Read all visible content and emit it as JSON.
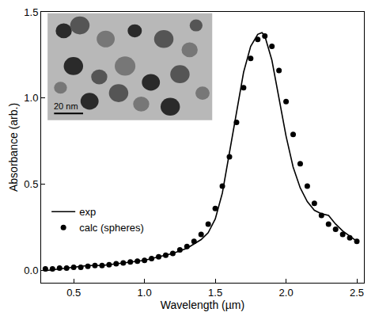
{
  "chart_data": {
    "type": "line",
    "x_label": "Wavelength (µm)",
    "y_label": "Absorbance (arb.)",
    "xlim": [
      0.27,
      2.55
    ],
    "ylim": [
      -0.07,
      1.5
    ],
    "xticks": [
      0.5,
      {
        "value": 1,
        "label": "1.0"
      },
      1.5,
      {
        "value": 2,
        "label": "2.0"
      },
      2.5
    ],
    "yticks": [
      {
        "value": 0,
        "label": "0.0"
      },
      0.5,
      {
        "value": 1,
        "label": "1.0"
      },
      1.5
    ],
    "grid": false,
    "legend": "lower left",
    "annotations": [
      "20 nm"
    ],
    "series": [
      {
        "name": "exp",
        "type": "line",
        "color": "#000000",
        "line_style": "solid",
        "x": [
          0.3,
          0.4,
          0.5,
          0.6,
          0.7,
          0.8,
          0.9,
          1.0,
          1.1,
          1.2,
          1.3,
          1.4,
          1.45,
          1.5,
          1.55,
          1.6,
          1.65,
          1.7,
          1.75,
          1.8,
          1.83,
          1.85,
          1.9,
          1.95,
          2.0,
          2.05,
          2.1,
          2.15,
          2.2,
          2.25,
          2.3,
          2.35,
          2.4,
          2.45,
          2.5
        ],
        "values": [
          0.0,
          0.01,
          0.02,
          0.03,
          0.03,
          0.04,
          0.05,
          0.06,
          0.08,
          0.1,
          0.13,
          0.18,
          0.22,
          0.3,
          0.45,
          0.68,
          0.92,
          1.15,
          1.3,
          1.37,
          1.38,
          1.36,
          1.22,
          1.0,
          0.78,
          0.6,
          0.48,
          0.4,
          0.35,
          0.33,
          0.32,
          0.27,
          0.23,
          0.2,
          0.17
        ]
      },
      {
        "name": "calc (spheres)",
        "type": "scatter",
        "color": "#000000",
        "marker": "circle",
        "x": [
          0.3,
          0.35,
          0.4,
          0.45,
          0.5,
          0.55,
          0.6,
          0.65,
          0.7,
          0.75,
          0.8,
          0.85,
          0.9,
          0.95,
          1.0,
          1.05,
          1.1,
          1.15,
          1.2,
          1.25,
          1.3,
          1.35,
          1.4,
          1.45,
          1.5,
          1.55,
          1.6,
          1.65,
          1.7,
          1.75,
          1.8,
          1.85,
          1.9,
          1.95,
          2.0,
          2.05,
          2.1,
          2.15,
          2.2,
          2.25,
          2.3,
          2.35,
          2.4,
          2.45,
          2.5
        ],
        "values": [
          0.01,
          0.01,
          0.015,
          0.015,
          0.02,
          0.02,
          0.025,
          0.03,
          0.03,
          0.035,
          0.04,
          0.045,
          0.05,
          0.055,
          0.06,
          0.07,
          0.08,
          0.09,
          0.1,
          0.12,
          0.14,
          0.17,
          0.21,
          0.27,
          0.36,
          0.49,
          0.66,
          0.86,
          1.06,
          1.23,
          1.34,
          1.36,
          1.3,
          1.16,
          0.98,
          0.79,
          0.62,
          0.49,
          0.39,
          0.32,
          0.27,
          0.24,
          0.21,
          0.19,
          0.17
        ]
      }
    ]
  }
}
